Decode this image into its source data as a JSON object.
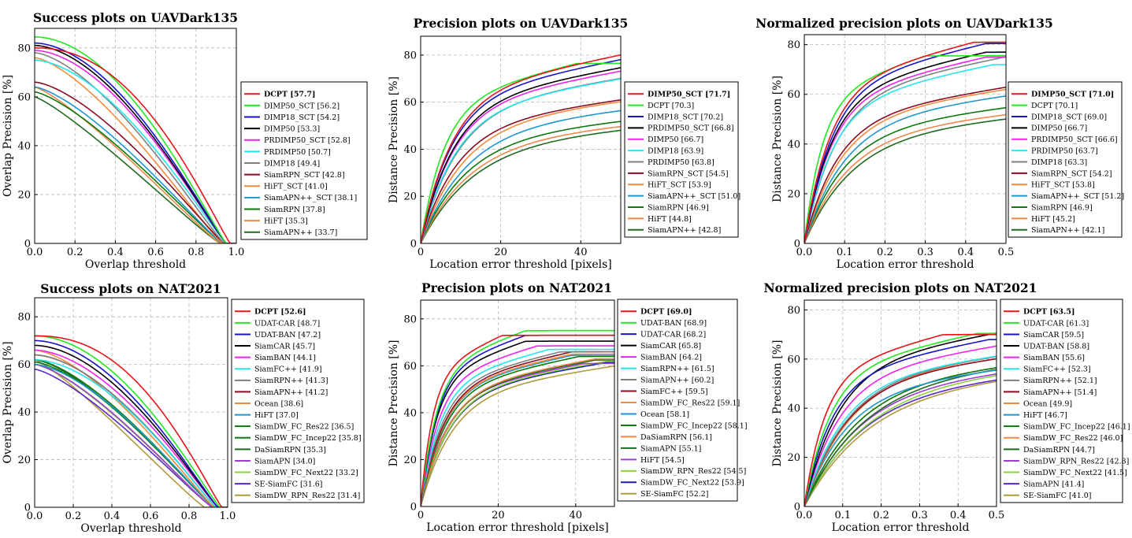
{
  "palette": {
    "red": "#e8141a",
    "green": "#22e822",
    "blue": "#1515c8",
    "black": "#000000",
    "magenta": "#f022f0",
    "cyan": "#22e6f0",
    "gray": "#808080",
    "maroon": "#8b0c24",
    "orange": "#f28b3c",
    "skyblue": "#1e96d2",
    "darkgreen": "#0c7a0c",
    "lightorange": "#f0884a",
    "forest": "#1f6b1f",
    "lightgreen": "#8cd23c",
    "olive": "#b09a3c",
    "purple": "#a03cd2",
    "violet": "#5a28c8",
    "navy": "#1a1ab4"
  },
  "chart_data": [
    {
      "id": "success-uavdark135",
      "type": "line",
      "kind": "success",
      "title": "Success plots on UAVDark135",
      "xlabel": "Overlap threshold",
      "ylabel": "Overlap Precision [%]",
      "xlim": [
        0,
        1
      ],
      "ylim": [
        0,
        88
      ],
      "xticks": [
        "0.0",
        "0.2",
        "0.4",
        "0.6",
        "0.8",
        "1.0"
      ],
      "yticks": [
        "0",
        "20",
        "40",
        "60",
        "80"
      ],
      "legend_position": "right",
      "series": [
        {
          "name": "DCPT",
          "score": "[57.7]",
          "color": "red",
          "start": 80,
          "shape": 2.2,
          "end": 0.97
        },
        {
          "name": "DIMP50_SCT",
          "score": "[56.2]",
          "color": "green",
          "start": 84.5,
          "shape": 1.9,
          "end": 0.95
        },
        {
          "name": "DIMP18_SCT",
          "score": "[54.2]",
          "color": "blue",
          "start": 82,
          "shape": 1.8,
          "end": 0.95
        },
        {
          "name": "DIMP50",
          "score": "[53.3]",
          "color": "black",
          "start": 81,
          "shape": 1.75,
          "end": 0.95
        },
        {
          "name": "PRDIMP50_SCT",
          "score": "[52.8]",
          "color": "magenta",
          "start": 79,
          "shape": 1.75,
          "end": 0.95
        },
        {
          "name": "PRDIMP50",
          "score": "[50.7]",
          "color": "cyan",
          "start": 75,
          "shape": 1.7,
          "end": 0.95
        },
        {
          "name": "DIMP18",
          "score": "[49.4]",
          "color": "gray",
          "start": 78,
          "shape": 1.55,
          "end": 0.94
        },
        {
          "name": "SiamRPN_SCT",
          "score": "[42.8]",
          "color": "maroon",
          "start": 66,
          "shape": 1.5,
          "end": 0.94
        },
        {
          "name": "HiFT_SCT",
          "score": "[41.0]",
          "color": "orange",
          "start": 76,
          "shape": 1.45,
          "end": 0.93
        },
        {
          "name": "SiamAPN++_SCT",
          "score": "[38.1]",
          "color": "skyblue",
          "start": 64,
          "shape": 1.4,
          "end": 0.93
        },
        {
          "name": "SiamRPN",
          "score": "[37.8]",
          "color": "darkgreen",
          "start": 62,
          "shape": 1.35,
          "end": 0.93
        },
        {
          "name": "HiFT",
          "score": "[35.3]",
          "color": "lightorange",
          "start": 64,
          "shape": 1.25,
          "end": 0.92
        },
        {
          "name": "SiamAPN++",
          "score": "[33.7]",
          "color": "forest",
          "start": 60,
          "shape": 1.2,
          "end": 0.92
        }
      ]
    },
    {
      "id": "precision-uavdark135",
      "type": "line",
      "kind": "precision",
      "title": "Precision plots on UAVDark135",
      "xlabel": "Location error threshold [pixels]",
      "ylabel": "Distance Precision [%]",
      "xlim": [
        0,
        50
      ],
      "ylim": [
        0,
        88
      ],
      "xticks": [
        "0",
        "20",
        "40"
      ],
      "yticks": [
        "0",
        "20",
        "40",
        "60",
        "80"
      ],
      "legend_position": "right",
      "series": [
        {
          "name": "DIMP50_SCT",
          "score": "[71.7]",
          "color": "red",
          "v": 80.5,
          "h": 8.5
        },
        {
          "name": "DCPT",
          "score": "[70.3]",
          "color": "green",
          "v": 76.5,
          "h": 6.5
        },
        {
          "name": "DIMP18_SCT",
          "score": "[70.2]",
          "color": "blue",
          "v": 78.5,
          "h": 8.5
        },
        {
          "name": "PRDIMP50_SCT",
          "score": "[66.8]",
          "color": "black",
          "v": 76.0,
          "h": 9.0
        },
        {
          "name": "DIMP50",
          "score": "[66.7]",
          "color": "magenta",
          "v": 74.5,
          "h": 9.0
        },
        {
          "name": "DIMP18",
          "score": "[63.9]",
          "color": "cyan",
          "v": 72.0,
          "h": 9.5
        },
        {
          "name": "PRDIMP50",
          "score": "[63.8]",
          "color": "gray",
          "v": 73.0,
          "h": 10.0
        },
        {
          "name": "SiamRPN_SCT",
          "score": "[54.5]",
          "color": "maroon",
          "v": 63.5,
          "h": 10.0
        },
        {
          "name": "HiFT_SCT",
          "score": "[53.9]",
          "color": "orange",
          "v": 64.5,
          "h": 11.5
        },
        {
          "name": "SiamAPN++_SCT",
          "score": "[51.0]",
          "color": "skyblue",
          "v": 61.5,
          "h": 12.5
        },
        {
          "name": "SiamRPN",
          "score": "[46.9]",
          "color": "darkgreen",
          "v": 56.5,
          "h": 12.5
        },
        {
          "name": "HiFT",
          "score": "[44.8]",
          "color": "lightorange",
          "v": 55.0,
          "h": 13.5
        },
        {
          "name": "SiamAPN++",
          "score": "[42.8]",
          "color": "forest",
          "v": 54.0,
          "h": 14.5
        }
      ]
    },
    {
      "id": "normprecision-uavdark135",
      "type": "line",
      "kind": "precision",
      "title": "Normalized precision plots on UAVDark135",
      "xlabel": "Location error threshold",
      "ylabel": "Distance Precision [%]",
      "xlim": [
        0,
        0.5
      ],
      "ylim": [
        0,
        84
      ],
      "xticks": [
        "0.0",
        "0.1",
        "0.2",
        "0.3",
        "0.4",
        "0.5"
      ],
      "yticks": [
        "0",
        "20",
        "40",
        "60",
        "80"
      ],
      "legend_position": "right",
      "series": [
        {
          "name": "DIMP50_SCT",
          "score": "[71.0]",
          "color": "red",
          "v": 81.0,
          "h": 0.07
        },
        {
          "name": "DCPT",
          "score": "[70.1]",
          "color": "green",
          "v": 75.5,
          "h": 0.05
        },
        {
          "name": "DIMP18_SCT",
          "score": "[69.0]",
          "color": "blue",
          "v": 80.5,
          "h": 0.075
        },
        {
          "name": "DIMP50",
          "score": "[66.7]",
          "color": "black",
          "v": 77.0,
          "h": 0.075
        },
        {
          "name": "PRDIMP50_SCT",
          "score": "[66.6]",
          "color": "magenta",
          "v": 75.0,
          "h": 0.075
        },
        {
          "name": "PRDIMP50",
          "score": "[63.7]",
          "color": "cyan",
          "v": 72.0,
          "h": 0.078
        },
        {
          "name": "DIMP18",
          "score": "[63.3]",
          "color": "gray",
          "v": 75.5,
          "h": 0.085
        },
        {
          "name": "SiamRPN_SCT",
          "score": "[54.2]",
          "color": "maroon",
          "v": 64.0,
          "h": 0.09
        },
        {
          "name": "HiFT_SCT",
          "score": "[53.8]",
          "color": "orange",
          "v": 64.5,
          "h": 0.1
        },
        {
          "name": "SiamAPN++_SCT",
          "score": "[51.2]",
          "color": "skyblue",
          "v": 63.0,
          "h": 0.11
        },
        {
          "name": "SiamRPN",
          "score": "[46.9]",
          "color": "darkgreen",
          "v": 58.0,
          "h": 0.11
        },
        {
          "name": "HiFT",
          "score": "[45.2]",
          "color": "lightorange",
          "v": 56.0,
          "h": 0.12
        },
        {
          "name": "SiamAPN++",
          "score": "[42.1]",
          "color": "forest",
          "v": 55.0,
          "h": 0.13
        }
      ]
    },
    {
      "id": "success-nat2021",
      "type": "line",
      "kind": "success",
      "title": "Success plots on NAT2021",
      "xlabel": "Overlap threshold",
      "ylabel": "Overlap Precision [%]",
      "xlim": [
        0,
        1
      ],
      "ylim": [
        0,
        88
      ],
      "xticks": [
        "0.0",
        "0.2",
        "0.4",
        "0.6",
        "0.8",
        "1.0"
      ],
      "yticks": [
        "0",
        "20",
        "40",
        "60",
        "80"
      ],
      "legend_position": "right",
      "series": [
        {
          "name": "DCPT",
          "score": "[52.6]",
          "color": "red",
          "start": 72,
          "shape": 2.3,
          "end": 0.97
        },
        {
          "name": "UDAT-CAR",
          "score": "[48.7]",
          "color": "green",
          "start": 72,
          "shape": 1.9,
          "end": 0.96
        },
        {
          "name": "UDAT-BAN",
          "score": "[47.2]",
          "color": "blue",
          "start": 70,
          "shape": 1.85,
          "end": 0.95
        },
        {
          "name": "SiamCAR",
          "score": "[45.7]",
          "color": "black",
          "start": 68,
          "shape": 1.8,
          "end": 0.95
        },
        {
          "name": "SiamBAN",
          "score": "[44.1]",
          "color": "magenta",
          "start": 66,
          "shape": 1.75,
          "end": 0.95
        },
        {
          "name": "SiamFC++",
          "score": "[41.9]",
          "color": "cyan",
          "start": 62,
          "shape": 1.75,
          "end": 0.94
        },
        {
          "name": "SiamRPN++",
          "score": "[41.3]",
          "color": "gray",
          "start": 64,
          "shape": 1.7,
          "end": 0.94
        },
        {
          "name": "SiamAPN++",
          "score": "[41.2]",
          "color": "maroon",
          "start": 64,
          "shape": 1.7,
          "end": 0.94
        },
        {
          "name": "Ocean",
          "score": "[38.6]",
          "color": "orange",
          "start": 66,
          "shape": 1.55,
          "end": 0.93
        },
        {
          "name": "HiFT",
          "score": "[37.0]",
          "color": "skyblue",
          "start": 60,
          "shape": 1.55,
          "end": 0.93
        },
        {
          "name": "SiamDW_FC_Res22",
          "score": "[36.5]",
          "color": "darkgreen",
          "start": 62,
          "shape": 1.5,
          "end": 0.93
        },
        {
          "name": "SiamDW_FC_Incep22",
          "score": "[35.8]",
          "color": "darkgreen",
          "start": 61,
          "shape": 1.48,
          "end": 0.93
        },
        {
          "name": "DaSiamRPN",
          "score": "[35.3]",
          "color": "forest",
          "start": 62,
          "shape": 1.45,
          "end": 0.93
        },
        {
          "name": "SiamAPN",
          "score": "[34.0]",
          "color": "purple",
          "start": 60,
          "shape": 1.4,
          "end": 0.92
        },
        {
          "name": "SiamDW_FC_Next22",
          "score": "[33.2]",
          "color": "lightgreen",
          "start": 60,
          "shape": 1.38,
          "end": 0.92
        },
        {
          "name": "SE-SiamFC",
          "score": "[31.6]",
          "color": "violet",
          "start": 58,
          "shape": 1.35,
          "end": 0.92
        },
        {
          "name": "SiamDW_RPN_Res22",
          "score": "[31.4]",
          "color": "olive",
          "start": 62,
          "shape": 1.2,
          "end": 0.88
        }
      ]
    },
    {
      "id": "precision-nat2021",
      "type": "line",
      "kind": "precision",
      "title": "Precision plots on NAT2021",
      "xlabel": "Location error threshold [pixels]",
      "ylabel": "Distance Precision [%]",
      "xlim": [
        0,
        50
      ],
      "ylim": [
        0,
        88
      ],
      "xticks": [
        "0",
        "20",
        "40"
      ],
      "yticks": [
        "0",
        "20",
        "40",
        "60",
        "80"
      ],
      "legend_position": "right",
      "series": [
        {
          "name": "DCPT",
          "score": "[69.0]",
          "color": "red",
          "v": 73.0,
          "h": 3.5
        },
        {
          "name": "UDAT-BAN",
          "score": "[68.9]",
          "color": "green",
          "v": 75.0,
          "h": 4.5
        },
        {
          "name": "UDAT-CAR",
          "score": "[68.2]",
          "color": "blue",
          "v": 73.0,
          "h": 4.5
        },
        {
          "name": "SiamCAR",
          "score": "[65.8]",
          "color": "black",
          "v": 70.5,
          "h": 4.5
        },
        {
          "name": "SiamBAN",
          "score": "[64.2]",
          "color": "magenta",
          "v": 68.5,
          "h": 5.0
        },
        {
          "name": "SiamRPN++",
          "score": "[61.5]",
          "color": "cyan",
          "v": 67.0,
          "h": 5.5
        },
        {
          "name": "SiamAPN++",
          "score": "[60.2]",
          "color": "gray",
          "v": 66.0,
          "h": 6.0
        },
        {
          "name": "SiamFC++",
          "score": "[59.5]",
          "color": "maroon",
          "v": 66.0,
          "h": 6.5
        },
        {
          "name": "SiamDW_FC_Res22",
          "score": "[59.1]",
          "color": "orange",
          "v": 65.0,
          "h": 6.5
        },
        {
          "name": "Ocean",
          "score": "[58.1]",
          "color": "skyblue",
          "v": 64.5,
          "h": 6.5
        },
        {
          "name": "SiamDW_FC_Incep22",
          "score": "[58.1]",
          "color": "darkgreen",
          "v": 64.0,
          "h": 6.8
        },
        {
          "name": "DaSiamRPN",
          "score": "[56.1]",
          "color": "lightorange",
          "v": 63.0,
          "h": 7.5
        },
        {
          "name": "SiamAPN",
          "score": "[55.1]",
          "color": "forest",
          "v": 62.5,
          "h": 7.5
        },
        {
          "name": "HiFT",
          "score": "[54.5]",
          "color": "purple",
          "v": 61.0,
          "h": 7.0
        },
        {
          "name": "SiamDW_RPN_Res22",
          "score": "[54.5]",
          "color": "lightgreen",
          "v": 62.0,
          "h": 8.0
        },
        {
          "name": "SiamDW_FC_Next22",
          "score": "[53.9]",
          "color": "navy",
          "v": 61.5,
          "h": 8.0
        },
        {
          "name": "SE-SiamFC",
          "score": "[52.2]",
          "color": "olive",
          "v": 61.0,
          "h": 9.0
        }
      ]
    },
    {
      "id": "normprecision-nat2021",
      "type": "line",
      "kind": "precision",
      "title": "Normalized precision plots on NAT2021",
      "xlabel": "Location error threshold",
      "ylabel": "Distance Precision [%]",
      "xlim": [
        0,
        0.5
      ],
      "ylim": [
        0,
        84
      ],
      "xticks": [
        "0.0",
        "0.1",
        "0.2",
        "0.3",
        "0.4",
        "0.5"
      ],
      "yticks": [
        "0",
        "20",
        "40",
        "60",
        "80"
      ],
      "legend_position": "right",
      "series": [
        {
          "name": "DCPT",
          "score": "[63.5]",
          "color": "red",
          "v": 70.0,
          "h": 0.06
        },
        {
          "name": "UDAT-CAR",
          "score": "[61.3]",
          "color": "green",
          "v": 70.5,
          "h": 0.075
        },
        {
          "name": "SiamCAR",
          "score": "[59.5]",
          "color": "blue",
          "v": 68.0,
          "h": 0.08
        },
        {
          "name": "UDAT-BAN",
          "score": "[58.8]",
          "color": "black",
          "v": 73.5,
          "h": 0.1
        },
        {
          "name": "SiamBAN",
          "score": "[55.6]",
          "color": "magenta",
          "v": 68.0,
          "h": 0.1
        },
        {
          "name": "SiamFC++",
          "score": "[52.3]",
          "color": "cyan",
          "v": 65.0,
          "h": 0.11
        },
        {
          "name": "SiamRPN++",
          "score": "[52.1]",
          "color": "gray",
          "v": 66.0,
          "h": 0.12
        },
        {
          "name": "SiamAPN++",
          "score": "[51.4]",
          "color": "maroon",
          "v": 65.0,
          "h": 0.12
        },
        {
          "name": "Ocean",
          "score": "[49.9]",
          "color": "orange",
          "v": 67.0,
          "h": 0.13
        },
        {
          "name": "HiFT",
          "score": "[46.7]",
          "color": "skyblue",
          "v": 60.0,
          "h": 0.12
        },
        {
          "name": "SiamDW_FC_Incep22",
          "score": "[46.1]",
          "color": "darkgreen",
          "v": 64.0,
          "h": 0.15
        },
        {
          "name": "SiamDW_FC_Res22",
          "score": "[46.0]",
          "color": "lightorange",
          "v": 64.0,
          "h": 0.15
        },
        {
          "name": "DaSiamRPN",
          "score": "[44.7]",
          "color": "forest",
          "v": 65.0,
          "h": 0.17
        },
        {
          "name": "SiamDW_RPN_Res22",
          "score": "[42.8]",
          "color": "purple",
          "v": 62.0,
          "h": 0.16
        },
        {
          "name": "SiamDW_FC_Next22",
          "score": "[41.5]",
          "color": "lightgreen",
          "v": 63.0,
          "h": 0.18
        },
        {
          "name": "SiamAPN",
          "score": "[41.4]",
          "color": "violet",
          "v": 60.0,
          "h": 0.17
        },
        {
          "name": "SE-SiamFC",
          "score": "[41.0]",
          "color": "olive",
          "v": 61.0,
          "h": 0.19
        }
      ]
    }
  ]
}
